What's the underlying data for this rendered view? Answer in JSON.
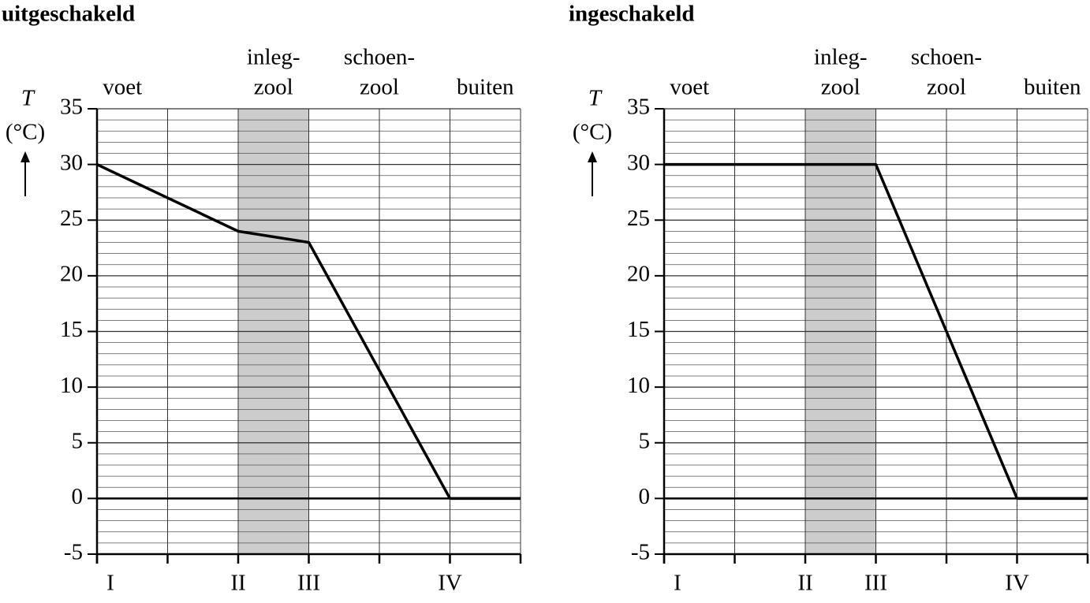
{
  "chart_data": [
    {
      "type": "line",
      "title": "uitgeschakeld",
      "ylabel": "T",
      "yunit": "(°C)",
      "regions": [
        {
          "lines": [
            "voet"
          ]
        },
        {
          "lines": [
            "inleg-",
            "zool"
          ]
        },
        {
          "lines": [
            "schoen-",
            "zool"
          ]
        },
        {
          "lines": [
            "buiten"
          ]
        }
      ],
      "x": [
        0,
        2,
        3,
        5,
        6
      ],
      "series": [
        {
          "color": "#000000",
          "values": [
            30,
            24,
            23,
            0,
            0
          ]
        }
      ],
      "xlim": [
        0,
        6
      ],
      "xticks": [
        {
          "value": 0,
          "label": "I"
        },
        {
          "value": 2,
          "label": "II"
        },
        {
          "value": 3,
          "label": "III"
        },
        {
          "value": 5,
          "label": "IV"
        }
      ],
      "xgrid": [
        0,
        1,
        2,
        3,
        4,
        5,
        6
      ],
      "ylim": [
        -5,
        35
      ],
      "yticks": [
        -5,
        0,
        5,
        10,
        15,
        20,
        25,
        30,
        35
      ],
      "ygrid_step": 1,
      "shade": [
        2,
        3
      ],
      "shade_color": "#cccccc"
    },
    {
      "type": "line",
      "title": "ingeschakeld",
      "ylabel": "T",
      "yunit": "(°C)",
      "regions": [
        {
          "lines": [
            "voet"
          ]
        },
        {
          "lines": [
            "inleg-",
            "zool"
          ]
        },
        {
          "lines": [
            "schoen-",
            "zool"
          ]
        },
        {
          "lines": [
            "buiten"
          ]
        }
      ],
      "x": [
        0,
        3,
        5,
        6
      ],
      "series": [
        {
          "color": "#000000",
          "values": [
            30,
            30,
            0,
            0
          ]
        }
      ],
      "xlim": [
        0,
        6
      ],
      "xticks": [
        {
          "value": 0,
          "label": "I"
        },
        {
          "value": 2,
          "label": "II"
        },
        {
          "value": 3,
          "label": "III"
        },
        {
          "value": 5,
          "label": "IV"
        }
      ],
      "xgrid": [
        0,
        1,
        2,
        3,
        4,
        5,
        6
      ],
      "ylim": [
        -5,
        35
      ],
      "yticks": [
        -5,
        0,
        5,
        10,
        15,
        20,
        25,
        30,
        35
      ],
      "ygrid_step": 1,
      "shade": [
        2,
        3
      ],
      "shade_color": "#cccccc"
    }
  ]
}
